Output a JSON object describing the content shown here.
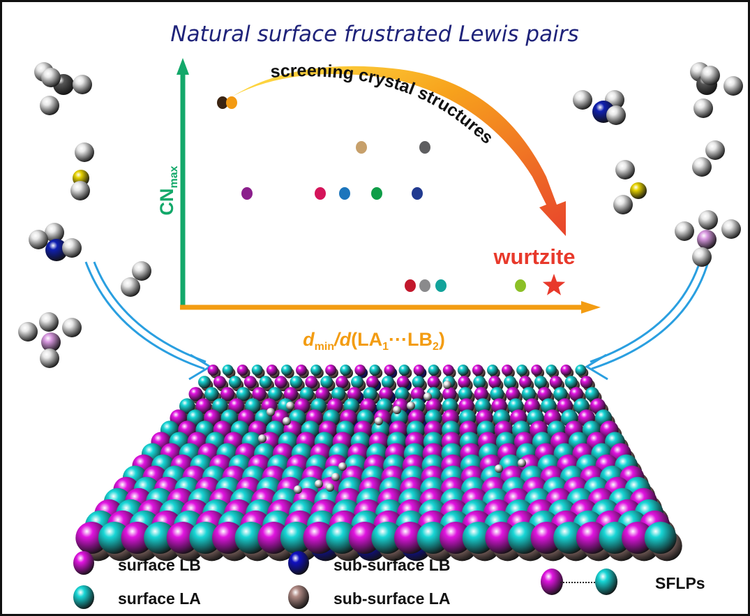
{
  "title": "Natural surface frustrated Lewis pairs",
  "plot": {
    "y_axis_label": "CN",
    "y_axis_label_sub": "max",
    "x_axis_label_parts": [
      "d",
      "min",
      "/",
      "d",
      "(LA",
      "1",
      "···LB",
      "2",
      ")"
    ],
    "arrow_label": "screening crystal structures",
    "highlight_label": "wurtzite",
    "dot_colors": [
      "#3b2412",
      "#f39a12",
      "#c7a06b",
      "#5e5e60",
      "#8b1f8c",
      "#d4145a",
      "#1c75bc",
      "#0f9d48",
      "#213a90",
      "#c2182c",
      "#8a8a8c",
      "#12a39b",
      "#8cc027"
    ],
    "star_color": "#e8392b",
    "y_axis_color": "#13a86a",
    "x_axis_color": "#f39c12"
  },
  "legend": {
    "items": [
      {
        "label": "surface LB",
        "color": "#e014e0"
      },
      {
        "label": "surface LA",
        "color": "#18d6d6"
      },
      {
        "label": "sub-surface LB",
        "color": "#1010c0"
      },
      {
        "label": "sub-surface LA",
        "color": "#b08a84"
      }
    ],
    "pair_label": "SFLPs"
  }
}
